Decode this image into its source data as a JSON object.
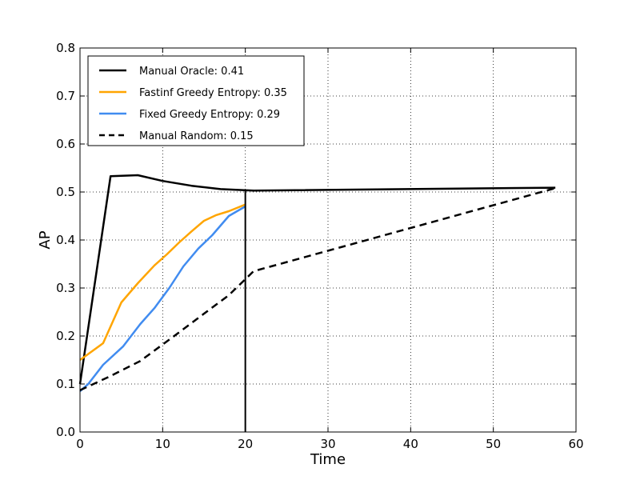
{
  "chart_data": {
    "type": "line",
    "xlabel": "Time",
    "ylabel": "AP",
    "xlim": [
      0,
      60
    ],
    "ylim": [
      0,
      0.8
    ],
    "xticks": [
      0,
      10,
      20,
      30,
      40,
      50,
      60
    ],
    "yticks": [
      0.0,
      0.1,
      0.2,
      0.3,
      0.4,
      0.5,
      0.6,
      0.7,
      0.8
    ],
    "xtick_labels": [
      "0",
      "10",
      "20",
      "30",
      "40",
      "50",
      "60"
    ],
    "ytick_labels": [
      "0.0",
      "0.1",
      "0.2",
      "0.3",
      "0.4",
      "0.5",
      "0.6",
      "0.7",
      "0.8"
    ],
    "grid": true,
    "legend_position": "upper-left",
    "vertical_line_x": 20,
    "series": [
      {
        "name": "Manual Oracle: 0.41",
        "color": "#000000",
        "dash": "solid",
        "x": [
          0,
          3.7,
          7,
          10,
          13.5,
          17,
          21,
          57.5
        ],
        "y": [
          0.1,
          0.533,
          0.535,
          0.523,
          0.513,
          0.506,
          0.503,
          0.509
        ]
      },
      {
        "name": "Fastinf Greedy Entropy: 0.35",
        "color": "#ffa500",
        "dash": "solid",
        "x": [
          0,
          2.8,
          5,
          7,
          9,
          10.5,
          12,
          13.5,
          15,
          16.5,
          18,
          20
        ],
        "y": [
          0.15,
          0.185,
          0.27,
          0.31,
          0.347,
          0.37,
          0.395,
          0.418,
          0.44,
          0.452,
          0.46,
          0.474
        ]
      },
      {
        "name": "Fixed Greedy Entropy: 0.29",
        "color": "#418cf0",
        "dash": "solid",
        "x": [
          0,
          1,
          2.8,
          5.2,
          7.3,
          9,
          10.8,
          12.5,
          14.3,
          16,
          18,
          20
        ],
        "y": [
          0.085,
          0.1,
          0.14,
          0.178,
          0.225,
          0.258,
          0.3,
          0.345,
          0.382,
          0.41,
          0.45,
          0.47
        ]
      },
      {
        "name": "Manual Random: 0.15",
        "color": "#000000",
        "dash": "dashed",
        "x": [
          0,
          3.5,
          7.3,
          11,
          14.5,
          18,
          21,
          57.5
        ],
        "y": [
          0.087,
          0.115,
          0.148,
          0.195,
          0.24,
          0.285,
          0.335,
          0.508
        ]
      }
    ]
  }
}
